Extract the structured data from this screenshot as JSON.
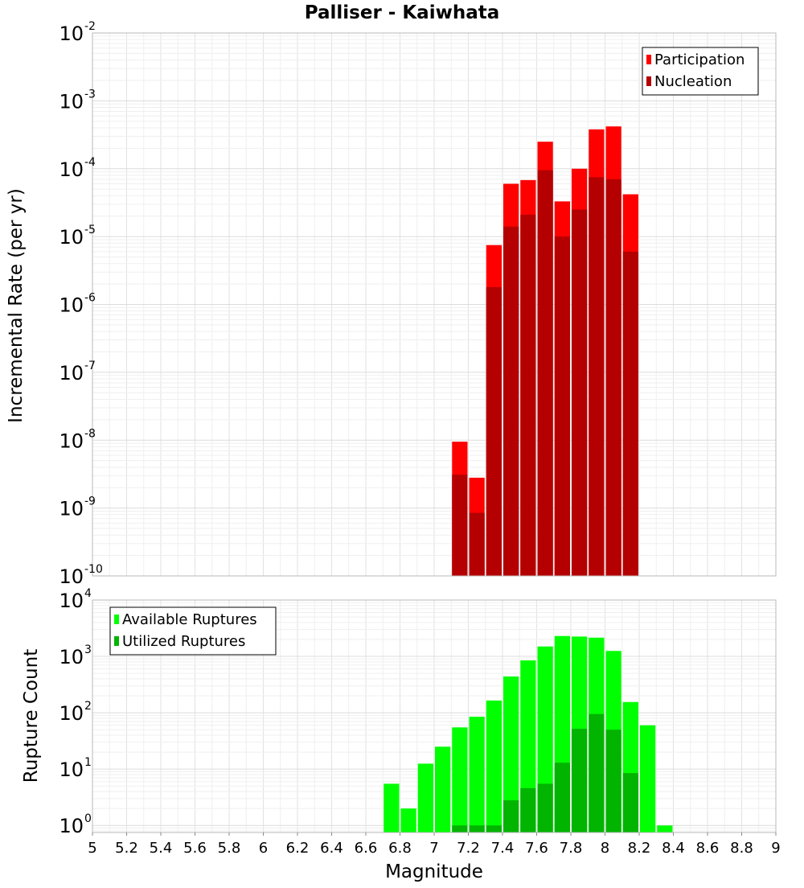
{
  "chart_data": [
    {
      "type": "bar",
      "title": "Palliser - Kaiwhata",
      "xlabel": "",
      "ylabel": "Incremental Rate (per yr)",
      "xlim": [
        5,
        9
      ],
      "ylim": [
        1e-10,
        0.01
      ],
      "yscale": "log",
      "grid": true,
      "legend_position": "top-right",
      "bin_width": 0.1,
      "y_decades": [
        "10",
        "10",
        "10",
        "10",
        "10",
        "10",
        "10",
        "10",
        "10"
      ],
      "y_exponents": [
        "-10",
        "-9",
        "-8",
        "-7",
        "-6",
        "-5",
        "-4",
        "-3",
        "-2"
      ],
      "series": [
        {
          "name": "Participation",
          "color": "#ff0000",
          "x": [
            7.15,
            7.25,
            7.35,
            7.45,
            7.55,
            7.65,
            7.75,
            7.85,
            7.95,
            8.05,
            8.15
          ],
          "values": [
            9.5e-09,
            2.8e-09,
            7.5e-06,
            6e-05,
            6.8e-05,
            0.00025,
            3.3e-05,
            0.0001,
            0.00038,
            0.00042,
            4.2e-05
          ]
        },
        {
          "name": "Nucleation",
          "color": "#b40000",
          "x": [
            7.15,
            7.25,
            7.35,
            7.45,
            7.55,
            7.65,
            7.75,
            7.85,
            7.95,
            8.05,
            8.15
          ],
          "values": [
            3.1e-09,
            8.5e-10,
            1.8e-06,
            1.4e-05,
            2.1e-05,
            9.5e-05,
            1e-05,
            2.5e-05,
            7.5e-05,
            7e-05,
            6e-06
          ]
        }
      ]
    },
    {
      "type": "bar",
      "title": "",
      "xlabel": "Magnitude",
      "ylabel": "Rupture Count",
      "xlim": [
        5,
        9
      ],
      "ylim": [
        0.75,
        10000
      ],
      "yscale": "log",
      "grid": true,
      "legend_position": "top-left",
      "bin_width": 0.1,
      "x_ticks": [
        "5",
        "5.2",
        "5.4",
        "5.6",
        "5.8",
        "6",
        "6.2",
        "6.4",
        "6.6",
        "6.8",
        "7",
        "7.2",
        "7.4",
        "7.6",
        "7.8",
        "8",
        "8.2",
        "8.4",
        "8.6",
        "8.8",
        "9"
      ],
      "y_decades": [
        "10",
        "10",
        "10",
        "10",
        "10"
      ],
      "y_exponents": [
        "0",
        "1",
        "2",
        "3",
        "4"
      ],
      "series": [
        {
          "name": "Available Ruptures",
          "color": "#00ff00",
          "x": [
            6.75,
            6.85,
            6.95,
            7.05,
            7.15,
            7.25,
            7.35,
            7.45,
            7.55,
            7.65,
            7.75,
            7.85,
            7.95,
            8.05,
            8.15,
            8.25,
            8.35
          ],
          "values": [
            5.5,
            2,
            12.5,
            25,
            55,
            85,
            165,
            440,
            850,
            1500,
            2300,
            2250,
            2150,
            1250,
            155,
            60,
            1
          ]
        },
        {
          "name": "Utilized Ruptures",
          "color": "#00b400",
          "x": [
            7.15,
            7.25,
            7.35,
            7.45,
            7.55,
            7.65,
            7.75,
            7.85,
            7.95,
            8.05,
            8.15
          ],
          "values": [
            1,
            1,
            1,
            2.8,
            4.6,
            5.5,
            13,
            52,
            95,
            50,
            8.5
          ]
        }
      ]
    }
  ]
}
